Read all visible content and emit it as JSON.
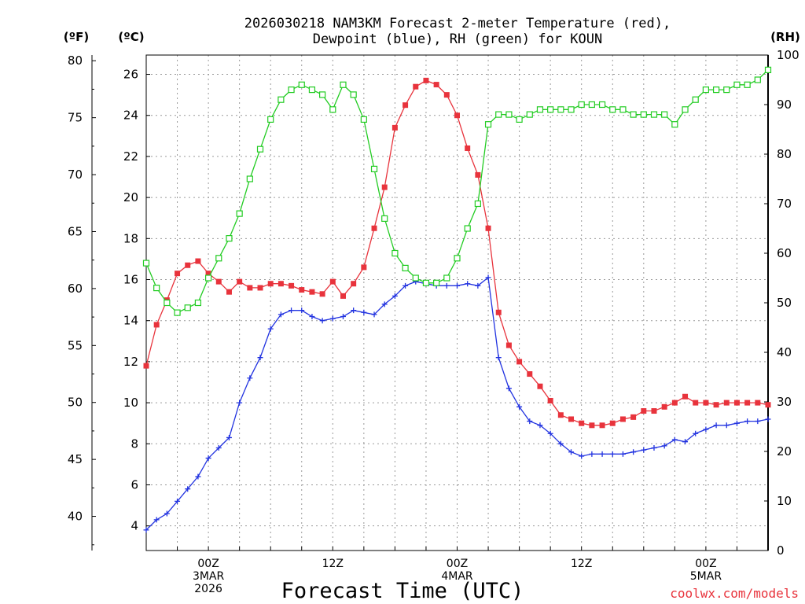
{
  "chart_data": {
    "type": "line",
    "title": [
      "2026030218 NAM3KM Forecast 2-meter Temperature (red),",
      "Dewpoint (blue), RH (green) for KOUN"
    ],
    "xlabel": "Forecast Time (UTC)",
    "credit": "coolwx.com/models",
    "axes": {
      "fahrenheit": {
        "unit_label": "(ºF)",
        "range": [
          37.0,
          80.5
        ],
        "ticks": [
          40,
          45,
          50,
          55,
          60,
          65,
          70,
          75,
          80
        ]
      },
      "celsius": {
        "unit_label": "(ºC)",
        "range": [
          2.8,
          26.94
        ],
        "ticks": [
          4,
          6,
          8,
          10,
          12,
          14,
          16,
          18,
          20,
          22,
          24,
          26
        ]
      },
      "rh": {
        "unit_label": "(RH)",
        "range": [
          0,
          100
        ],
        "ticks": [
          0,
          10,
          20,
          30,
          40,
          50,
          60,
          70,
          80,
          90,
          100
        ]
      },
      "x": {
        "unit": "hours since 2026-03-02 18Z",
        "range": [
          0,
          60
        ],
        "ticks": [
          {
            "hour": 6,
            "lines": [
              "00Z",
              "3MAR",
              "2026"
            ]
          },
          {
            "hour": 18,
            "lines": [
              "12Z"
            ]
          },
          {
            "hour": 30,
            "lines": [
              "00Z",
              "4MAR"
            ]
          },
          {
            "hour": 42,
            "lines": [
              "12Z"
            ]
          },
          {
            "hour": 54,
            "lines": [
              "00Z",
              "5MAR"
            ]
          }
        ]
      }
    },
    "grid": true,
    "x_hours": [
      0,
      1,
      2,
      3,
      4,
      5,
      6,
      7,
      8,
      9,
      10,
      11,
      12,
      13,
      14,
      15,
      16,
      17,
      18,
      19,
      20,
      21,
      22,
      23,
      24,
      25,
      26,
      27,
      28,
      29,
      30,
      31,
      32,
      33,
      34,
      35,
      36,
      37,
      38,
      39,
      40,
      41,
      42,
      43,
      44,
      45,
      46,
      47,
      48,
      49,
      50,
      51,
      52,
      53,
      54,
      55,
      56,
      57,
      58,
      59,
      60
    ],
    "series": [
      {
        "name": "Temperature",
        "unit": "ºC",
        "color": "#e8333c",
        "marker": "filled-square",
        "values": [
          11.8,
          13.8,
          15.0,
          16.3,
          16.7,
          16.9,
          16.3,
          15.9,
          15.4,
          15.9,
          15.6,
          15.6,
          15.8,
          15.8,
          15.7,
          15.5,
          15.4,
          15.3,
          15.9,
          15.2,
          15.8,
          16.6,
          18.5,
          20.5,
          23.4,
          24.5,
          25.4,
          25.7,
          25.5,
          25.0,
          24.0,
          22.4,
          21.1,
          18.5,
          14.4,
          12.8,
          12.0,
          11.4,
          10.8,
          10.1,
          9.4,
          9.2,
          9.0,
          8.9,
          8.9,
          9.0,
          9.2,
          9.3,
          9.6,
          9.6,
          9.8,
          10.0,
          10.3,
          10.0,
          10.0,
          9.9,
          10.0,
          10.0,
          10.0,
          10.0,
          9.9
        ]
      },
      {
        "name": "Dewpoint",
        "unit": "ºC",
        "color": "#2233e0",
        "marker": "plus",
        "values": [
          3.8,
          4.3,
          4.6,
          5.2,
          5.8,
          6.4,
          7.3,
          7.8,
          8.3,
          10.0,
          11.2,
          12.2,
          13.6,
          14.3,
          14.5,
          14.5,
          14.2,
          14.0,
          14.1,
          14.2,
          14.5,
          14.4,
          14.3,
          14.8,
          15.2,
          15.7,
          15.9,
          15.8,
          15.7,
          15.7,
          15.7,
          15.8,
          15.7,
          16.1,
          12.2,
          10.7,
          9.8,
          9.1,
          8.9,
          8.5,
          8.0,
          7.6,
          7.4,
          7.5,
          7.5,
          7.5,
          7.5,
          7.6,
          7.7,
          7.8,
          7.9,
          8.2,
          8.1,
          8.5,
          8.7,
          8.9,
          8.9,
          9.0,
          9.1,
          9.1,
          9.2
        ]
      },
      {
        "name": "RH",
        "unit": "%",
        "color": "#22cc22",
        "marker": "open-square",
        "values": [
          58,
          53,
          50,
          48,
          49,
          50,
          55,
          59,
          63,
          68,
          75,
          81,
          87,
          91,
          93,
          94,
          93,
          92,
          89,
          94,
          92,
          87,
          77,
          67,
          60,
          57,
          55,
          54,
          54,
          55,
          59,
          65,
          70,
          86,
          88,
          88,
          87,
          88,
          89,
          89,
          89,
          89,
          90,
          90,
          90,
          89,
          89,
          88,
          88,
          88,
          88,
          86,
          89,
          91,
          93,
          93,
          93,
          94,
          94,
          95,
          97
        ]
      }
    ]
  }
}
